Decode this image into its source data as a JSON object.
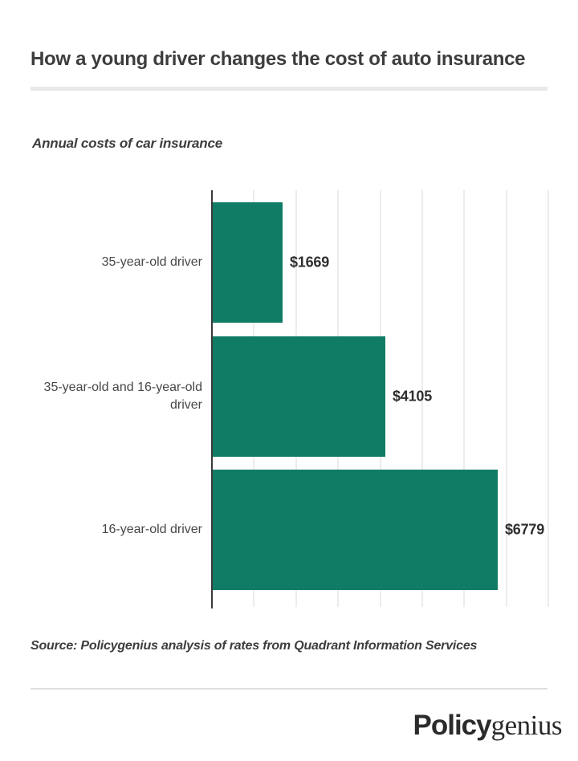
{
  "header": {
    "title": "How a young driver changes the cost of auto insurance"
  },
  "chart_subtitle": "Annual costs of car insurance",
  "chart_data": {
    "type": "bar",
    "orientation": "horizontal",
    "title": "Annual costs of car insurance",
    "categories": [
      "35-year-old driver",
      "35-year-old and 16-year-old driver",
      "16-year-old driver"
    ],
    "values": [
      1669,
      4105,
      6779
    ],
    "value_labels": [
      "$1669",
      "$4105",
      "$6779"
    ],
    "xlabel": "",
    "ylabel": "",
    "xlim": [
      0,
      8000
    ],
    "gridline_interval": 1000,
    "grid": true,
    "legend": false,
    "bar_color": "#117c66"
  },
  "footer": {
    "source": "Source: Policygenius analysis of rates from Quadrant Information Services",
    "logo": {
      "bold": "Policy",
      "serif": "genius"
    }
  },
  "colors": {
    "background": "#ffffff",
    "bar": "#117c66",
    "title_text": "#3d3d3d",
    "label_text": "#474747",
    "value_text": "#2e2e2e",
    "axis": "#3a3a3a",
    "gridline": "#ececec",
    "divider": "#e8e8e8"
  }
}
